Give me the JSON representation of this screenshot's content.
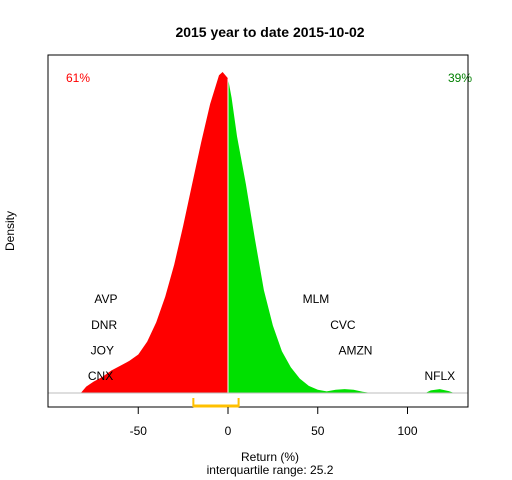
{
  "chart_data": {
    "type": "area",
    "title": "2015  year to date 2015-10-02",
    "xlabel": "Return (%)",
    "ylabel": "Density",
    "subtitle": "interquartile range: 25.2",
    "xlim": [
      -92,
      132
    ],
    "ylim": [
      0,
      1
    ],
    "x_ticks": [
      -50,
      0,
      50,
      100
    ],
    "x_tick_labels": [
      "-50",
      "0",
      "50",
      "100"
    ],
    "split_at": 0,
    "negative_share": "61%",
    "positive_share": "39%",
    "interquartile": {
      "low": -19.3,
      "high": 5.9
    },
    "colors": {
      "negative": "#ff0000",
      "positive": "#00e000",
      "iqr": "#ffc000",
      "divider": "#ffffff",
      "baseline": "#bebebe"
    },
    "density": [
      {
        "x": -82,
        "y": 0.0
      },
      {
        "x": -79,
        "y": 0.02
      },
      {
        "x": -75,
        "y": 0.035
      },
      {
        "x": -70,
        "y": 0.05
      },
      {
        "x": -65,
        "y": 0.07
      },
      {
        "x": -60,
        "y": 0.085
      },
      {
        "x": -55,
        "y": 0.1
      },
      {
        "x": -50,
        "y": 0.12
      },
      {
        "x": -45,
        "y": 0.16
      },
      {
        "x": -40,
        "y": 0.22
      },
      {
        "x": -35,
        "y": 0.3
      },
      {
        "x": -30,
        "y": 0.4
      },
      {
        "x": -25,
        "y": 0.52
      },
      {
        "x": -20,
        "y": 0.65
      },
      {
        "x": -15,
        "y": 0.78
      },
      {
        "x": -10,
        "y": 0.9
      },
      {
        "x": -5,
        "y": 0.99
      },
      {
        "x": -3,
        "y": 1.0
      },
      {
        "x": 0,
        "y": 0.98
      },
      {
        "x": 2,
        "y": 0.92
      },
      {
        "x": 5,
        "y": 0.8
      },
      {
        "x": 10,
        "y": 0.65
      },
      {
        "x": 15,
        "y": 0.48
      },
      {
        "x": 20,
        "y": 0.32
      },
      {
        "x": 25,
        "y": 0.21
      },
      {
        "x": 30,
        "y": 0.13
      },
      {
        "x": 35,
        "y": 0.08
      },
      {
        "x": 40,
        "y": 0.045
      },
      {
        "x": 45,
        "y": 0.022
      },
      {
        "x": 50,
        "y": 0.01
      },
      {
        "x": 55,
        "y": 0.005
      },
      {
        "x": 60,
        "y": 0.01
      },
      {
        "x": 65,
        "y": 0.012
      },
      {
        "x": 70,
        "y": 0.01
      },
      {
        "x": 75,
        "y": 0.004
      },
      {
        "x": 80,
        "y": 0.0
      },
      {
        "x": 110,
        "y": 0.0
      },
      {
        "x": 113,
        "y": 0.008
      },
      {
        "x": 118,
        "y": 0.012
      },
      {
        "x": 123,
        "y": 0.006
      },
      {
        "x": 126,
        "y": 0.0
      }
    ],
    "annotations": [
      {
        "text": "AVP",
        "x": -68,
        "y": 0.28
      },
      {
        "text": "DNR",
        "x": -69,
        "y": 0.2
      },
      {
        "text": "JOY",
        "x": -70,
        "y": 0.12
      },
      {
        "text": "CNX",
        "x": -71,
        "y": 0.04
      },
      {
        "text": "MLM",
        "x": 49,
        "y": 0.28
      },
      {
        "text": "CVC",
        "x": 64,
        "y": 0.2
      },
      {
        "text": "AMZN",
        "x": 71,
        "y": 0.12
      },
      {
        "text": "NFLX",
        "x": 118,
        "y": 0.04
      }
    ]
  }
}
